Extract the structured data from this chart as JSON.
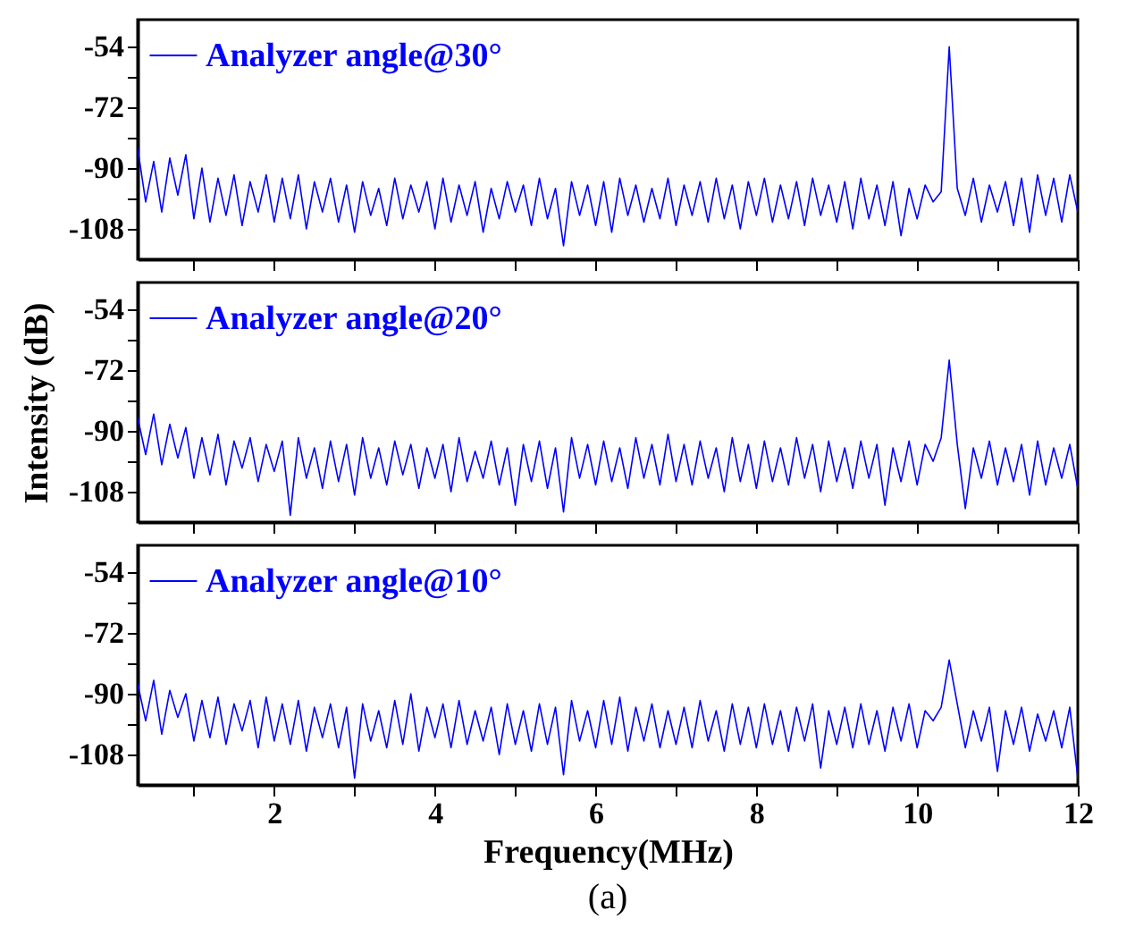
{
  "chart_data": [
    {
      "type": "line",
      "tick_labels": "y",
      "legend": "top left",
      "grid": false,
      "xlim": [
        0.3,
        12
      ],
      "ylim": [
        -117,
        -46
      ],
      "xticks": [
        {
          "value": 1,
          "label": null
        },
        2,
        {
          "value": 3,
          "label": null
        },
        4,
        {
          "value": 5,
          "label": null
        },
        6,
        {
          "value": 7,
          "label": null
        },
        8,
        {
          "value": 9,
          "label": null
        },
        10,
        {
          "value": 11,
          "label": null
        },
        12
      ],
      "yticks": [
        -54,
        {
          "value": -63,
          "label": null
        },
        -72,
        {
          "value": -81,
          "label": null
        },
        -90,
        {
          "value": -99,
          "label": null
        },
        -108
      ],
      "x": [
        0.3,
        0.4,
        0.5,
        0.6,
        0.7,
        0.8,
        0.9,
        1.0,
        1.1,
        1.2,
        1.3,
        1.4,
        1.5,
        1.6,
        1.7,
        1.8,
        1.9,
        2.0,
        2.1,
        2.2,
        2.3,
        2.4,
        2.5,
        2.6,
        2.7,
        2.8,
        2.9,
        3.0,
        3.1,
        3.2,
        3.3,
        3.4,
        3.5,
        3.6,
        3.7,
        3.8,
        3.9,
        4.0,
        4.1,
        4.2,
        4.3,
        4.4,
        4.5,
        4.6,
        4.7,
        4.8,
        4.9,
        5.0,
        5.1,
        5.2,
        5.3,
        5.4,
        5.5,
        5.6,
        5.7,
        5.8,
        5.9,
        6.0,
        6.1,
        6.2,
        6.3,
        6.4,
        6.5,
        6.6,
        6.7,
        6.8,
        6.9,
        7.0,
        7.1,
        7.2,
        7.3,
        7.4,
        7.5,
        7.6,
        7.7,
        7.8,
        7.9,
        8.0,
        8.1,
        8.2,
        8.3,
        8.4,
        8.5,
        8.6,
        8.7,
        8.8,
        8.9,
        9.0,
        9.1,
        9.2,
        9.3,
        9.4,
        9.5,
        9.6,
        9.7,
        9.8,
        9.9,
        10.0,
        10.1,
        10.2,
        10.3,
        10.4,
        10.5,
        10.6,
        10.7,
        10.8,
        10.9,
        11.0,
        11.1,
        11.2,
        11.3,
        11.4,
        11.5,
        11.6,
        11.7,
        11.8,
        11.9,
        12.0
      ],
      "series": [
        {
          "name": "Analyzer angle@30°",
          "color": "#0000ff",
          "values": [
            -84,
            -100,
            -88,
            -103,
            -87,
            -98,
            -86,
            -105,
            -90,
            -106,
            -93,
            -104,
            -92,
            -107,
            -94,
            -103,
            -92,
            -106,
            -93,
            -105,
            -92,
            -108,
            -94,
            -103,
            -93,
            -106,
            -95,
            -109,
            -94,
            -104,
            -96,
            -107,
            -93,
            -105,
            -95,
            -103,
            -94,
            -108,
            -93,
            -106,
            -95,
            -104,
            -94,
            -109,
            -96,
            -105,
            -94,
            -103,
            -95,
            -107,
            -93,
            -105,
            -96,
            -113,
            -94,
            -104,
            -95,
            -107,
            -94,
            -109,
            -93,
            -104,
            -95,
            -106,
            -96,
            -105,
            -93,
            -107,
            -95,
            -104,
            -94,
            -106,
            -93,
            -105,
            -95,
            -108,
            -94,
            -104,
            -93,
            -106,
            -95,
            -105,
            -94,
            -107,
            -93,
            -104,
            -95,
            -106,
            -94,
            -108,
            -93,
            -105,
            -95,
            -107,
            -94,
            -110,
            -96,
            -105,
            -95,
            -100,
            -97,
            -54,
            -96,
            -104,
            -93,
            -106,
            -95,
            -103,
            -94,
            -107,
            -93,
            -109,
            -92,
            -104,
            -93,
            -106,
            -92,
            -103
          ]
        }
      ]
    },
    {
      "type": "line",
      "tick_labels": "y",
      "legend": "top left",
      "grid": false,
      "ylabel": "Intensity (dB)",
      "xlim": [
        0.3,
        12
      ],
      "ylim": [
        -117,
        -46
      ],
      "xticks": [
        {
          "value": 1,
          "label": null
        },
        2,
        {
          "value": 3,
          "label": null
        },
        4,
        {
          "value": 5,
          "label": null
        },
        6,
        {
          "value": 7,
          "label": null
        },
        8,
        {
          "value": 9,
          "label": null
        },
        10,
        {
          "value": 11,
          "label": null
        },
        12
      ],
      "yticks": [
        -54,
        {
          "value": -63,
          "label": null
        },
        -72,
        {
          "value": -81,
          "label": null
        },
        -90,
        {
          "value": -99,
          "label": null
        },
        -108
      ],
      "x": [
        0.3,
        0.4,
        0.5,
        0.6,
        0.7,
        0.8,
        0.9,
        1.0,
        1.1,
        1.2,
        1.3,
        1.4,
        1.5,
        1.6,
        1.7,
        1.8,
        1.9,
        2.0,
        2.1,
        2.2,
        2.3,
        2.4,
        2.5,
        2.6,
        2.7,
        2.8,
        2.9,
        3.0,
        3.1,
        3.2,
        3.3,
        3.4,
        3.5,
        3.6,
        3.7,
        3.8,
        3.9,
        4.0,
        4.1,
        4.2,
        4.3,
        4.4,
        4.5,
        4.6,
        4.7,
        4.8,
        4.9,
        5.0,
        5.1,
        5.2,
        5.3,
        5.4,
        5.5,
        5.6,
        5.7,
        5.8,
        5.9,
        6.0,
        6.1,
        6.2,
        6.3,
        6.4,
        6.5,
        6.6,
        6.7,
        6.8,
        6.9,
        7.0,
        7.1,
        7.2,
        7.3,
        7.4,
        7.5,
        7.6,
        7.7,
        7.8,
        7.9,
        8.0,
        8.1,
        8.2,
        8.3,
        8.4,
        8.5,
        8.6,
        8.7,
        8.8,
        8.9,
        9.0,
        9.1,
        9.2,
        9.3,
        9.4,
        9.5,
        9.6,
        9.7,
        9.8,
        9.9,
        10.0,
        10.1,
        10.2,
        10.3,
        10.4,
        10.5,
        10.6,
        10.7,
        10.8,
        10.9,
        11.0,
        11.1,
        11.2,
        11.3,
        11.4,
        11.5,
        11.6,
        11.7,
        11.8,
        11.9,
        12.0
      ],
      "series": [
        {
          "name": "Analyzer angle@20°",
          "color": "#0000ff",
          "values": [
            -86,
            -97,
            -85,
            -100,
            -88,
            -98,
            -89,
            -104,
            -92,
            -103,
            -91,
            -106,
            -93,
            -101,
            -92,
            -105,
            -94,
            -102,
            -93,
            -115,
            -92,
            -104,
            -95,
            -107,
            -93,
            -105,
            -94,
            -109,
            -92,
            -104,
            -95,
            -106,
            -93,
            -103,
            -94,
            -107,
            -95,
            -104,
            -94,
            -108,
            -92,
            -105,
            -96,
            -104,
            -93,
            -106,
            -95,
            -112,
            -94,
            -105,
            -93,
            -107,
            -95,
            -114,
            -92,
            -104,
            -94,
            -106,
            -93,
            -105,
            -95,
            -107,
            -92,
            -104,
            -94,
            -106,
            -91,
            -105,
            -94,
            -106,
            -93,
            -104,
            -95,
            -108,
            -92,
            -105,
            -94,
            -107,
            -93,
            -105,
            -95,
            -106,
            -92,
            -104,
            -94,
            -108,
            -93,
            -105,
            -95,
            -107,
            -93,
            -104,
            -94,
            -112,
            -95,
            -105,
            -93,
            -106,
            -94,
            -99,
            -92,
            -69,
            -94,
            -113,
            -95,
            -104,
            -93,
            -106,
            -95,
            -105,
            -94,
            -109,
            -93,
            -106,
            -95,
            -104,
            -94,
            -107
          ]
        }
      ]
    },
    {
      "type": "line",
      "legend": "top left",
      "grid": false,
      "xlabel": "Frequency(MHz)",
      "annotations": [
        "(a)"
      ],
      "xlim": [
        0.3,
        12
      ],
      "ylim": [
        -117,
        -46
      ],
      "xticks": [
        {
          "value": 1,
          "label": null
        },
        2,
        {
          "value": 3,
          "label": null
        },
        4,
        {
          "value": 5,
          "label": null
        },
        6,
        {
          "value": 7,
          "label": null
        },
        8,
        {
          "value": 9,
          "label": null
        },
        10,
        {
          "value": 11,
          "label": null
        },
        12
      ],
      "yticks": [
        -54,
        {
          "value": -63,
          "label": null
        },
        -72,
        {
          "value": -81,
          "label": null
        },
        -90,
        {
          "value": -99,
          "label": null
        },
        -108
      ],
      "x": [
        0.3,
        0.4,
        0.5,
        0.6,
        0.7,
        0.8,
        0.9,
        1.0,
        1.1,
        1.2,
        1.3,
        1.4,
        1.5,
        1.6,
        1.7,
        1.8,
        1.9,
        2.0,
        2.1,
        2.2,
        2.3,
        2.4,
        2.5,
        2.6,
        2.7,
        2.8,
        2.9,
        3.0,
        3.1,
        3.2,
        3.3,
        3.4,
        3.5,
        3.6,
        3.7,
        3.8,
        3.9,
        4.0,
        4.1,
        4.2,
        4.3,
        4.4,
        4.5,
        4.6,
        4.7,
        4.8,
        4.9,
        5.0,
        5.1,
        5.2,
        5.3,
        5.4,
        5.5,
        5.6,
        5.7,
        5.8,
        5.9,
        6.0,
        6.1,
        6.2,
        6.3,
        6.4,
        6.5,
        6.6,
        6.7,
        6.8,
        6.9,
        7.0,
        7.1,
        7.2,
        7.3,
        7.4,
        7.5,
        7.6,
        7.7,
        7.8,
        7.9,
        8.0,
        8.1,
        8.2,
        8.3,
        8.4,
        8.5,
        8.6,
        8.7,
        8.8,
        8.9,
        9.0,
        9.1,
        9.2,
        9.3,
        9.4,
        9.5,
        9.6,
        9.7,
        9.8,
        9.9,
        10.0,
        10.1,
        10.2,
        10.3,
        10.4,
        10.5,
        10.6,
        10.7,
        10.8,
        10.9,
        11.0,
        11.1,
        11.2,
        11.3,
        11.4,
        11.5,
        11.6,
        11.7,
        11.8,
        11.9,
        12.0
      ],
      "series": [
        {
          "name": "Analyzer angle@10°",
          "color": "#0000ff",
          "values": [
            -87,
            -98,
            -86,
            -102,
            -89,
            -97,
            -90,
            -104,
            -92,
            -103,
            -91,
            -105,
            -93,
            -101,
            -92,
            -106,
            -91,
            -104,
            -93,
            -105,
            -92,
            -107,
            -94,
            -103,
            -93,
            -106,
            -94,
            -115,
            -93,
            -104,
            -95,
            -106,
            -92,
            -105,
            -90,
            -107,
            -94,
            -103,
            -93,
            -106,
            -92,
            -105,
            -95,
            -104,
            -94,
            -108,
            -93,
            -105,
            -95,
            -107,
            -93,
            -105,
            -94,
            -114,
            -92,
            -104,
            -95,
            -106,
            -92,
            -105,
            -91,
            -107,
            -94,
            -104,
            -93,
            -106,
            -95,
            -105,
            -94,
            -106,
            -92,
            -104,
            -95,
            -107,
            -93,
            -105,
            -94,
            -106,
            -93,
            -105,
            -95,
            -107,
            -94,
            -104,
            -93,
            -112,
            -95,
            -105,
            -94,
            -106,
            -93,
            -105,
            -95,
            -107,
            -94,
            -104,
            -93,
            -106,
            -95,
            -98,
            -94,
            -80,
            -93,
            -106,
            -95,
            -104,
            -94,
            -113,
            -95,
            -105,
            -94,
            -107,
            -96,
            -104,
            -95,
            -106,
            -94,
            -115
          ]
        }
      ]
    }
  ]
}
